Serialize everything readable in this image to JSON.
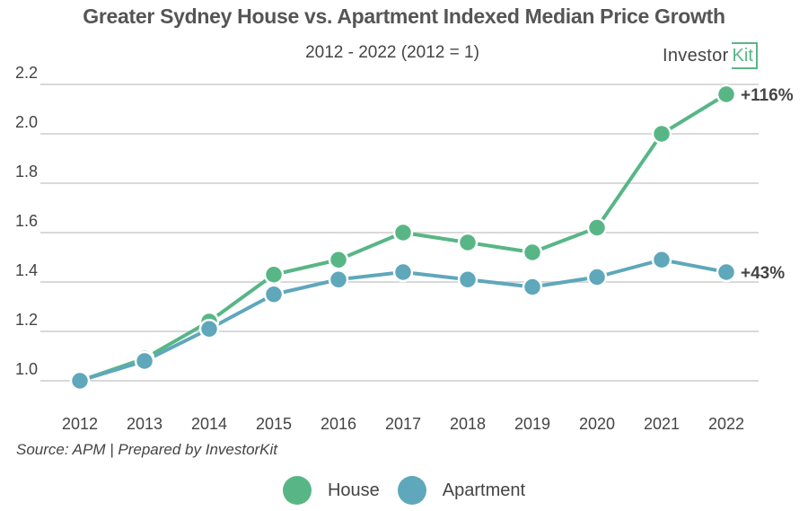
{
  "chart_data": {
    "type": "line",
    "title": "Greater Sydney House vs. Apartment Indexed Median Price Growth",
    "subtitle": "2012 - 2022 (2012 = 1)",
    "xlabel": "",
    "ylabel": "",
    "x": [
      "2012",
      "2013",
      "2014",
      "2015",
      "2016",
      "2017",
      "2018",
      "2019",
      "2020",
      "2021",
      "2022"
    ],
    "yticks": [
      "1.0",
      "1.2",
      "1.4",
      "1.6",
      "1.8",
      "2.0",
      "2.2"
    ],
    "ylim": [
      1.0,
      2.2
    ],
    "grid": true,
    "legend_position": "bottom-center",
    "series": [
      {
        "name": "House",
        "color": "#58b686",
        "values": [
          1.0,
          1.09,
          1.24,
          1.43,
          1.49,
          1.6,
          1.56,
          1.52,
          1.62,
          2.0,
          2.16
        ],
        "end_label": "+116%"
      },
      {
        "name": "Apartment",
        "color": "#5fa7bb",
        "values": [
          1.0,
          1.08,
          1.21,
          1.35,
          1.41,
          1.44,
          1.41,
          1.38,
          1.42,
          1.49,
          1.44
        ],
        "end_label": "+43%"
      }
    ],
    "source": "Source: APM | Prepared by InvestorKit"
  },
  "logo": {
    "text": "Investor",
    "box_text": "Kit"
  }
}
